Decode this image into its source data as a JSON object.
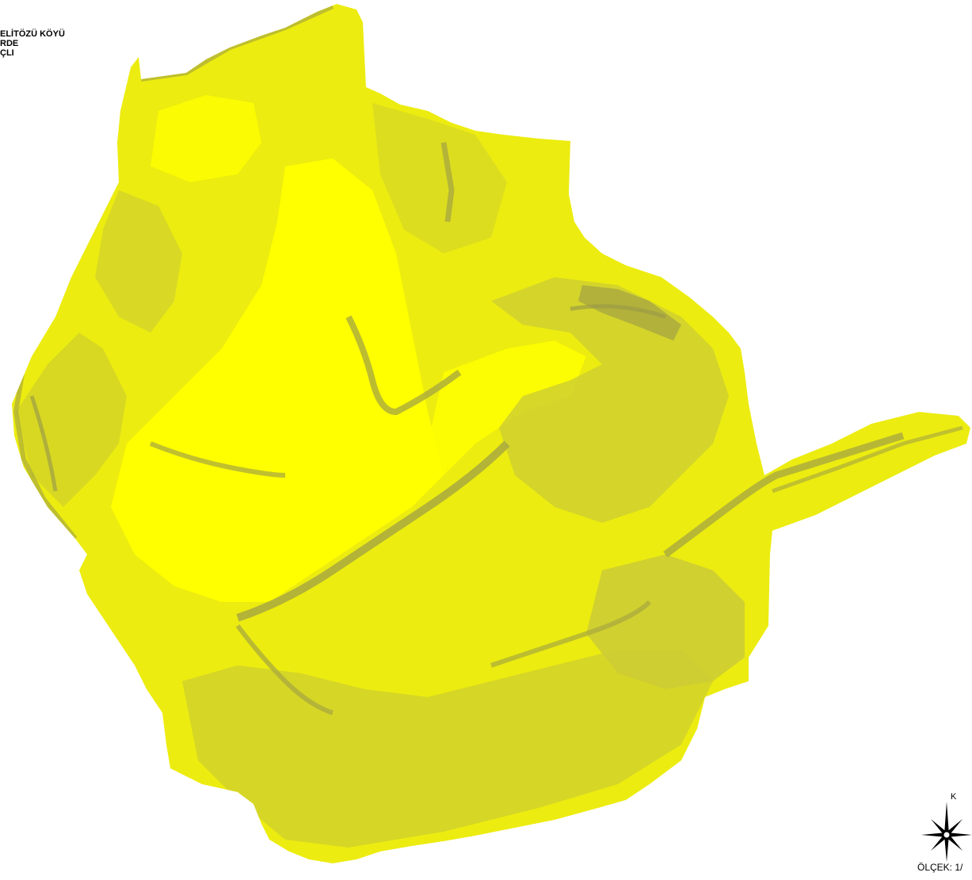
{
  "title": {
    "lines": [
      "ELİTÖZÜ KÖYÜ",
      "RDE",
      "ÇLI"
    ]
  },
  "map": {
    "fill_light": "#f2f200",
    "fill_bright": "#ffff00",
    "fill_medium": "#d8d820",
    "fill_dark": "#a8a840"
  },
  "north_arrow": {
    "label": "K",
    "icon": "compass-rose-icon"
  },
  "scale": {
    "label": "ÖLÇEK: 1/"
  }
}
